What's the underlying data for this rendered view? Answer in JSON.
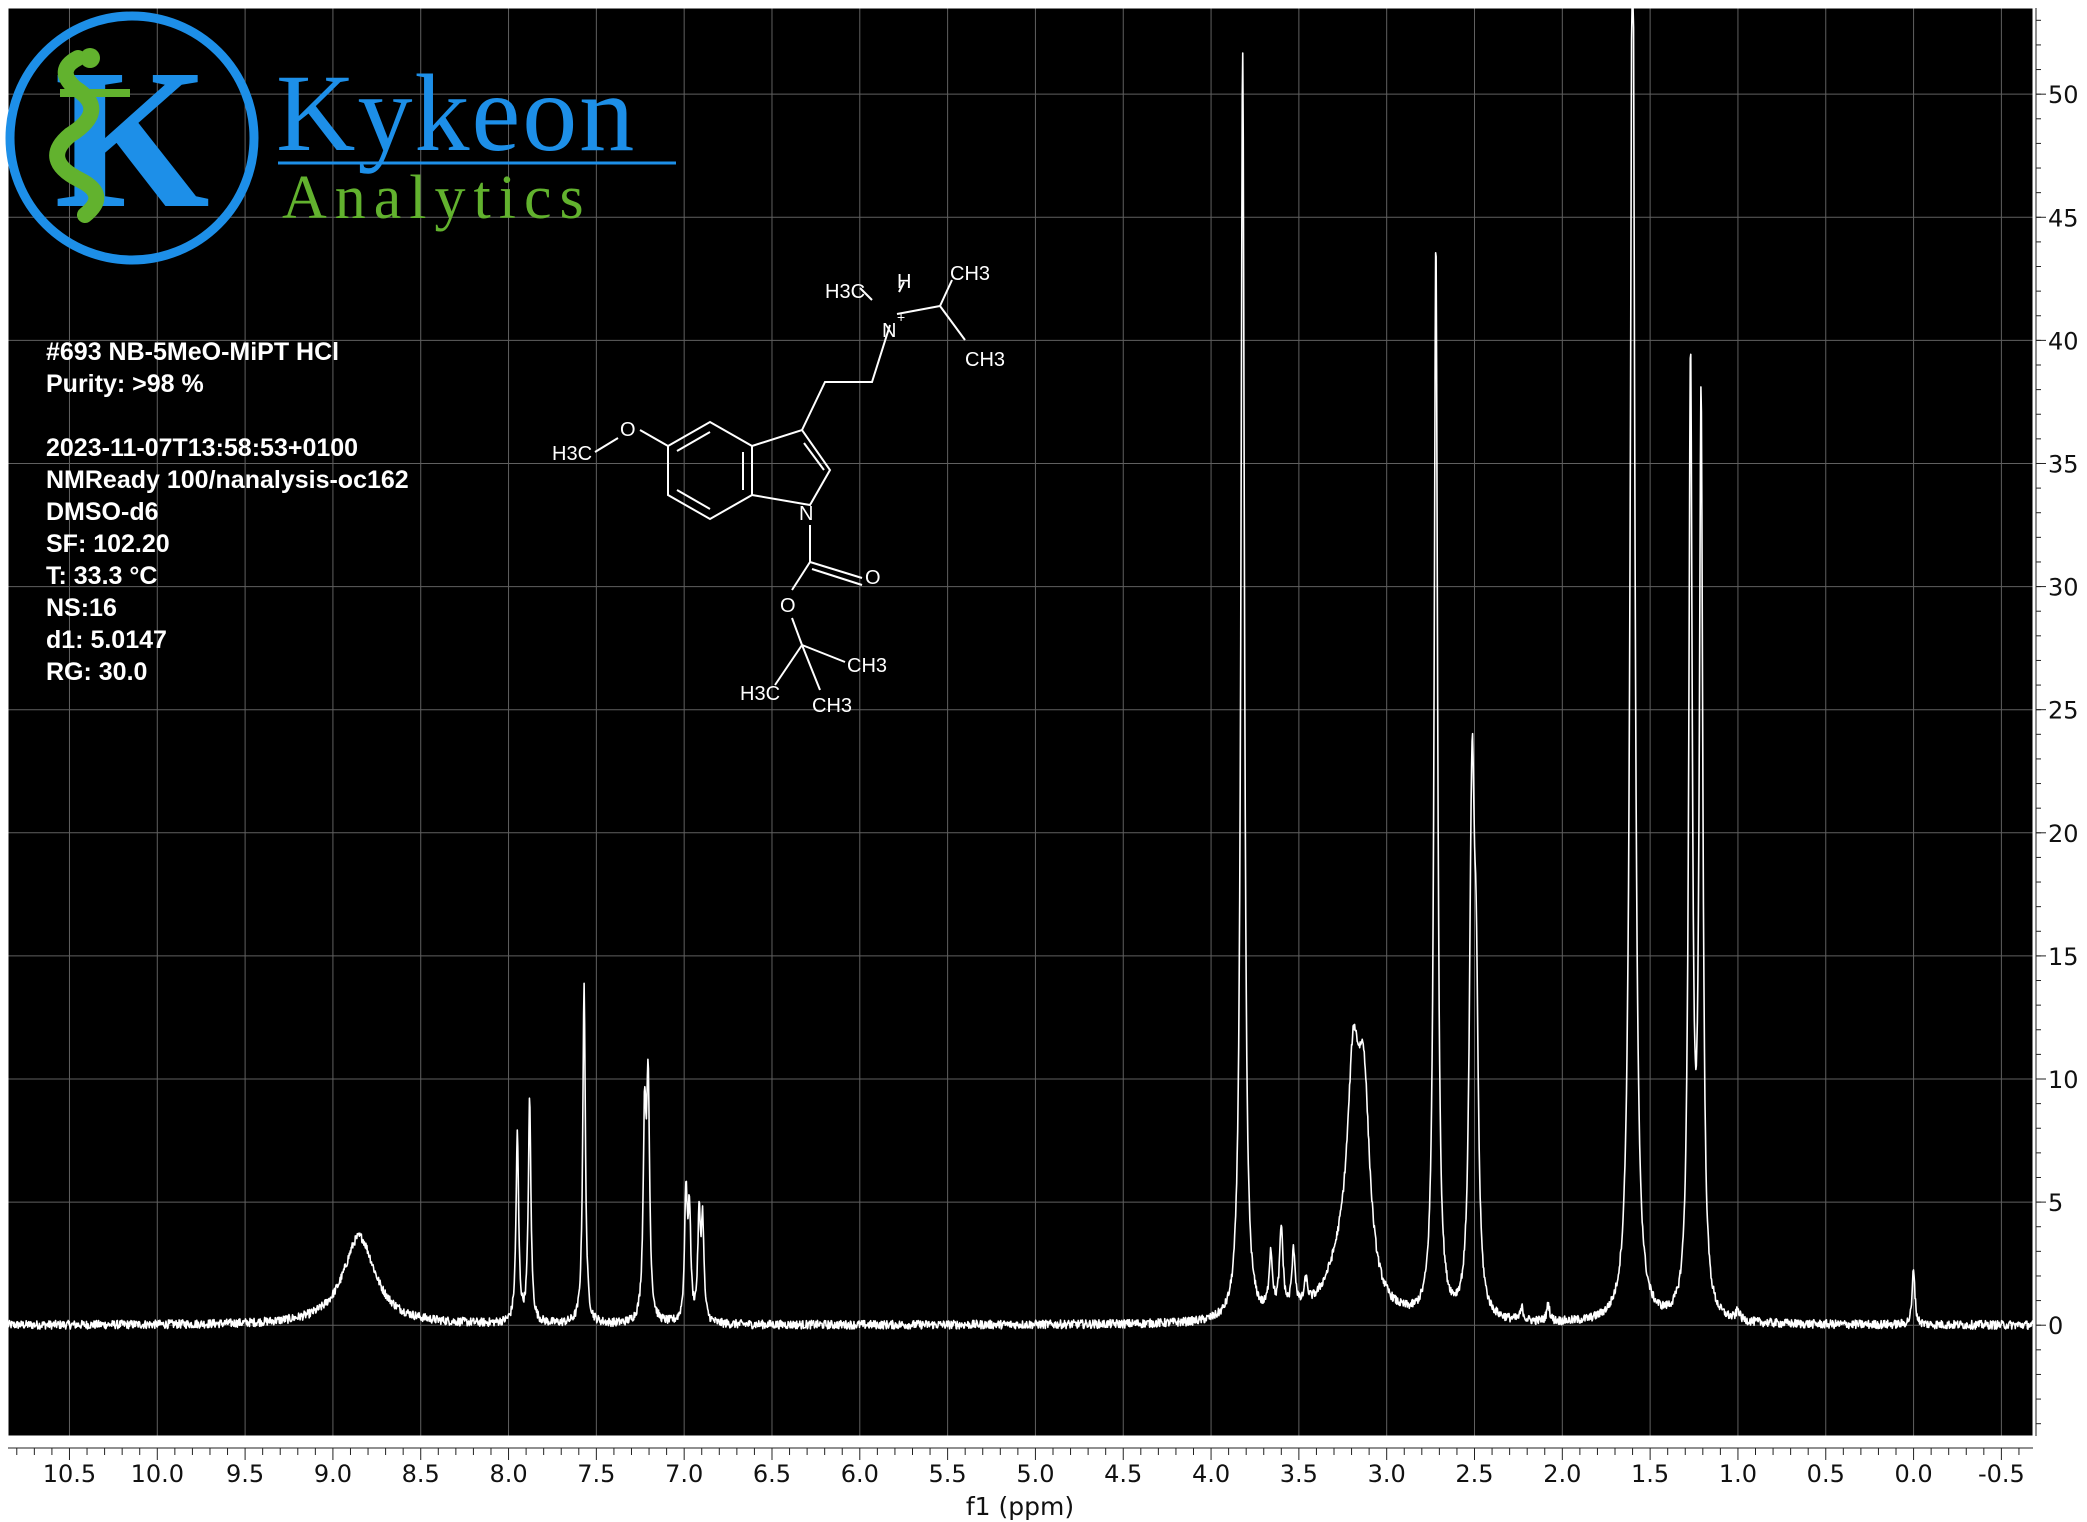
{
  "brand": {
    "name": "Kykeon",
    "subtitle": "Analytics",
    "colors": {
      "blue": "#1d8fe8",
      "green": "#62b22e"
    }
  },
  "sample_info": [
    "#693 NB-5MeO-MiPT HCl",
    "Purity: >98 %",
    "",
    "2023-11-07T13:58:53+0100",
    "NMReady 100/nanalysis-oc162",
    "DMSO-d6",
    "SF: 102.20",
    "T: 33.3 °C",
    "NS:16",
    "d1: 5.0147",
    "RG: 30.0"
  ],
  "molecule": {
    "labels": [
      "H3C",
      "O",
      "N",
      "O",
      "O",
      "H3C",
      "CH3",
      "CH3",
      "H3C",
      "H",
      "N",
      "+",
      "CH3",
      "CH3"
    ]
  },
  "colors": {
    "plot_background": "#000000",
    "trace": "#ffffff",
    "grid": "#606060",
    "frame": "#ffffff"
  },
  "chart_data": {
    "type": "line",
    "title": "",
    "xlabel": "f1 (ppm)",
    "ylabel": "",
    "xlim": [
      10.85,
      -0.68
    ],
    "ylim": [
      -4.5,
      53.5
    ],
    "x_reversed": true,
    "grid": true,
    "x_ticks": [
      10.5,
      10.0,
      9.5,
      9.0,
      8.5,
      8.0,
      7.5,
      7.0,
      6.5,
      6.0,
      5.5,
      5.0,
      4.5,
      4.0,
      3.5,
      3.0,
      2.5,
      2.0,
      1.5,
      1.0,
      0.5,
      0.0,
      -0.5
    ],
    "x_tick_labels": [
      "10.5",
      "10.0",
      "9.5",
      "9.0",
      "8.5",
      "8.0",
      "7.5",
      "7.0",
      "6.5",
      "6.0",
      "5.5",
      "5.0",
      "4.5",
      "4.0",
      "3.5",
      "3.0",
      "2.5",
      "2.0",
      "1.5",
      "1.0",
      "0.5",
      "0.0",
      "-0.5"
    ],
    "y_ticks": [
      0,
      5,
      10,
      15,
      20,
      25,
      30,
      35,
      40,
      45,
      50
    ],
    "y_tick_labels": [
      "0",
      "5",
      "10",
      "15",
      "20",
      "25",
      "30",
      "35",
      "40",
      "45",
      "50"
    ],
    "peaks": [
      {
        "ppm": 8.85,
        "height": 3.6,
        "width": 0.11
      },
      {
        "ppm": 7.95,
        "height": 7.6,
        "width": 0.009
      },
      {
        "ppm": 7.88,
        "height": 9.0,
        "width": 0.009
      },
      {
        "ppm": 7.57,
        "height": 13.7,
        "width": 0.009
      },
      {
        "ppm": 7.225,
        "height": 7.9,
        "width": 0.01
      },
      {
        "ppm": 7.205,
        "height": 9.1,
        "width": 0.01
      },
      {
        "ppm": 6.99,
        "height": 5.1,
        "width": 0.009
      },
      {
        "ppm": 6.97,
        "height": 4.3,
        "width": 0.009
      },
      {
        "ppm": 6.915,
        "height": 4.1,
        "width": 0.009
      },
      {
        "ppm": 6.895,
        "height": 3.9,
        "width": 0.009
      },
      {
        "ppm": 3.82,
        "height": 51.6,
        "width": 0.012
      },
      {
        "ppm": 3.66,
        "height": 2.4,
        "width": 0.012
      },
      {
        "ppm": 3.6,
        "height": 3.4,
        "width": 0.012
      },
      {
        "ppm": 3.53,
        "height": 2.4,
        "width": 0.012
      },
      {
        "ppm": 3.46,
        "height": 1.0,
        "width": 0.012
      },
      {
        "ppm": 3.19,
        "height": 8.0,
        "width": 0.04
      },
      {
        "ppm": 3.13,
        "height": 7.7,
        "width": 0.04
      },
      {
        "ppm": 3.25,
        "height": 2.0,
        "width": 0.12
      },
      {
        "ppm": 2.72,
        "height": 43.6,
        "width": 0.012
      },
      {
        "ppm": 2.51,
        "height": 13.6,
        "width": 0.014
      },
      {
        "ppm": 2.49,
        "height": 10.8,
        "width": 0.014
      },
      {
        "ppm": 2.52,
        "height": 9.5,
        "width": 0.014
      },
      {
        "ppm": 2.23,
        "height": 0.5,
        "width": 0.01
      },
      {
        "ppm": 2.08,
        "height": 0.7,
        "width": 0.01
      },
      {
        "ppm": 1.6,
        "height": 60.0,
        "width": 0.015
      },
      {
        "ppm": 1.27,
        "height": 38.4,
        "width": 0.012
      },
      {
        "ppm": 1.21,
        "height": 36.6,
        "width": 0.012
      },
      {
        "ppm": 1.0,
        "height": 0.4,
        "width": 0.012
      },
      {
        "ppm": 0.0,
        "height": 2.3,
        "width": 0.009
      }
    ]
  }
}
